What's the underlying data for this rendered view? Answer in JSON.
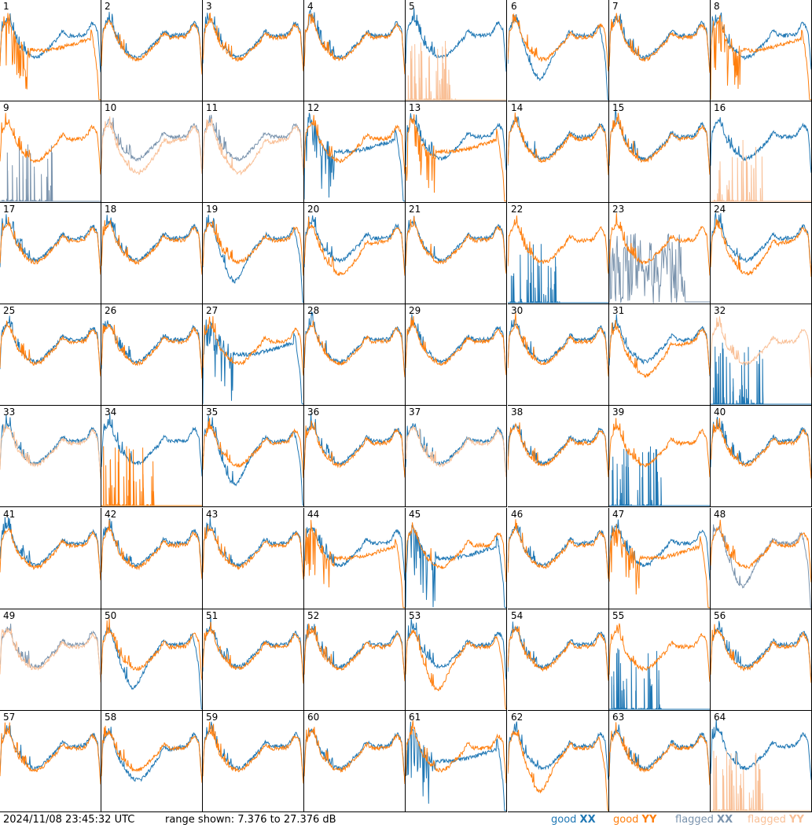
{
  "footer": {
    "timestamp": "2024/11/08 23:45:32 UTC",
    "range": "range shown: 7.376 to 27.376 dB"
  },
  "legend": [
    {
      "prefix": "good ",
      "pol": "XX",
      "color": "#1f77b4"
    },
    {
      "prefix": "good ",
      "pol": "YY",
      "color": "#ff7f0e"
    },
    {
      "prefix": "flagged ",
      "pol": "XX",
      "color": "#7a93ad"
    },
    {
      "prefix": "flagged ",
      "pol": "YY",
      "color": "#f9c097"
    }
  ],
  "colors": {
    "good_xx": "#1f77b4",
    "good_yy": "#ff7f0e",
    "flagged_xx": "#7a93ad",
    "flagged_yy": "#f9c097"
  },
  "chart_data": {
    "type": "line",
    "grid": "8x8 small multiples",
    "ylim_db": [
      7.376,
      27.376
    ],
    "panels": [
      {
        "label": "1",
        "xx": "norm",
        "yy": "drop",
        "xx_state": "good",
        "yy_state": "good"
      },
      {
        "label": "2",
        "xx": "norm",
        "yy": "norm",
        "xx_state": "good",
        "yy_state": "good"
      },
      {
        "label": "3",
        "xx": "norm",
        "yy": "norm",
        "xx_state": "good",
        "yy_state": "good"
      },
      {
        "label": "4",
        "xx": "norm",
        "yy": "norm",
        "xx_state": "good",
        "yy_state": "good"
      },
      {
        "label": "5",
        "xx": "norm",
        "yy": "spike",
        "xx_state": "good",
        "yy_state": "flagged"
      },
      {
        "label": "6",
        "xx": "sag",
        "yy": "norm",
        "xx_state": "good",
        "yy_state": "good"
      },
      {
        "label": "7",
        "xx": "norm",
        "yy": "norm",
        "xx_state": "good",
        "yy_state": "good"
      },
      {
        "label": "8",
        "xx": "norm",
        "yy": "drop",
        "xx_state": "good",
        "yy_state": "good"
      },
      {
        "label": "9",
        "xx": "spike",
        "yy": "norm",
        "xx_state": "flagged",
        "yy_state": "good"
      },
      {
        "label": "10",
        "xx": "norm",
        "yy": "low",
        "xx_state": "flagged",
        "yy_state": "flagged"
      },
      {
        "label": "11",
        "xx": "norm",
        "yy": "low",
        "xx_state": "flagged",
        "yy_state": "flagged"
      },
      {
        "label": "12",
        "xx": "drop",
        "yy": "norm",
        "xx_state": "good",
        "yy_state": "good"
      },
      {
        "label": "13",
        "xx": "norm",
        "yy": "drop",
        "xx_state": "good",
        "yy_state": "good"
      },
      {
        "label": "14",
        "xx": "norm",
        "yy": "norm",
        "xx_state": "good",
        "yy_state": "good"
      },
      {
        "label": "15",
        "xx": "norm",
        "yy": "norm",
        "xx_state": "good",
        "yy_state": "good"
      },
      {
        "label": "16",
        "xx": "norm",
        "yy": "spike",
        "xx_state": "good",
        "yy_state": "flagged"
      },
      {
        "label": "17",
        "xx": "norm",
        "yy": "norm",
        "xx_state": "good",
        "yy_state": "good"
      },
      {
        "label": "18",
        "xx": "norm",
        "yy": "norm",
        "xx_state": "good",
        "yy_state": "good"
      },
      {
        "label": "19",
        "xx": "sag",
        "yy": "norm",
        "xx_state": "good",
        "yy_state": "good"
      },
      {
        "label": "20",
        "xx": "norm",
        "yy": "low",
        "xx_state": "good",
        "yy_state": "good"
      },
      {
        "label": "21",
        "xx": "norm",
        "yy": "norm",
        "xx_state": "good",
        "yy_state": "good"
      },
      {
        "label": "22",
        "xx": "spike",
        "yy": "norm",
        "xx_state": "good",
        "yy_state": "good"
      },
      {
        "label": "23",
        "xx": "noise",
        "yy": "norm",
        "xx_state": "flagged",
        "yy_state": "good"
      },
      {
        "label": "24",
        "xx": "norm",
        "yy": "low",
        "xx_state": "good",
        "yy_state": "good"
      },
      {
        "label": "25",
        "xx": "norm",
        "yy": "norm",
        "xx_state": "good",
        "yy_state": "good"
      },
      {
        "label": "26",
        "xx": "norm",
        "yy": "norm",
        "xx_state": "good",
        "yy_state": "good"
      },
      {
        "label": "27",
        "xx": "drop",
        "yy": "norm",
        "xx_state": "good",
        "yy_state": "good"
      },
      {
        "label": "28",
        "xx": "norm",
        "yy": "norm",
        "xx_state": "good",
        "yy_state": "good"
      },
      {
        "label": "29",
        "xx": "norm",
        "yy": "norm",
        "xx_state": "good",
        "yy_state": "good"
      },
      {
        "label": "30",
        "xx": "norm",
        "yy": "norm",
        "xx_state": "good",
        "yy_state": "good"
      },
      {
        "label": "31",
        "xx": "norm",
        "yy": "low",
        "xx_state": "good",
        "yy_state": "good"
      },
      {
        "label": "32",
        "xx": "spike",
        "yy": "norm",
        "xx_state": "good",
        "yy_state": "flagged"
      },
      {
        "label": "33",
        "xx": "norm",
        "yy": "norm",
        "xx_state": "good",
        "yy_state": "flagged"
      },
      {
        "label": "34",
        "xx": "norm",
        "yy": "spike",
        "xx_state": "good",
        "yy_state": "good"
      },
      {
        "label": "35",
        "xx": "sag",
        "yy": "norm",
        "xx_state": "good",
        "yy_state": "good"
      },
      {
        "label": "36",
        "xx": "norm",
        "yy": "norm",
        "xx_state": "good",
        "yy_state": "good"
      },
      {
        "label": "37",
        "xx": "norm",
        "yy": "norm",
        "xx_state": "good",
        "yy_state": "flagged"
      },
      {
        "label": "38",
        "xx": "norm",
        "yy": "norm",
        "xx_state": "good",
        "yy_state": "good"
      },
      {
        "label": "39",
        "xx": "spike",
        "yy": "norm",
        "xx_state": "good",
        "yy_state": "good"
      },
      {
        "label": "40",
        "xx": "norm",
        "yy": "norm",
        "xx_state": "good",
        "yy_state": "good"
      },
      {
        "label": "41",
        "xx": "norm",
        "yy": "norm",
        "xx_state": "good",
        "yy_state": "good"
      },
      {
        "label": "42",
        "xx": "norm",
        "yy": "norm",
        "xx_state": "good",
        "yy_state": "good"
      },
      {
        "label": "43",
        "xx": "norm",
        "yy": "norm",
        "xx_state": "good",
        "yy_state": "good"
      },
      {
        "label": "44",
        "xx": "norm",
        "yy": "drop",
        "xx_state": "good",
        "yy_state": "good"
      },
      {
        "label": "45",
        "xx": "drop",
        "yy": "norm",
        "xx_state": "good",
        "yy_state": "good"
      },
      {
        "label": "46",
        "xx": "norm",
        "yy": "norm",
        "xx_state": "good",
        "yy_state": "good"
      },
      {
        "label": "47",
        "xx": "norm",
        "yy": "drop",
        "xx_state": "good",
        "yy_state": "good"
      },
      {
        "label": "48",
        "xx": "sag",
        "yy": "norm",
        "xx_state": "flagged",
        "yy_state": "good"
      },
      {
        "label": "49",
        "xx": "norm",
        "yy": "norm",
        "xx_state": "flagged",
        "yy_state": "flagged"
      },
      {
        "label": "50",
        "xx": "sag",
        "yy": "norm",
        "xx_state": "good",
        "yy_state": "good"
      },
      {
        "label": "51",
        "xx": "norm",
        "yy": "norm",
        "xx_state": "good",
        "yy_state": "good"
      },
      {
        "label": "52",
        "xx": "norm",
        "yy": "norm",
        "xx_state": "good",
        "yy_state": "good"
      },
      {
        "label": "53",
        "xx": "norm",
        "yy": "sag",
        "xx_state": "good",
        "yy_state": "good"
      },
      {
        "label": "54",
        "xx": "norm",
        "yy": "norm",
        "xx_state": "good",
        "yy_state": "good"
      },
      {
        "label": "55",
        "xx": "spike",
        "yy": "norm",
        "xx_state": "good",
        "yy_state": "good"
      },
      {
        "label": "56",
        "xx": "norm",
        "yy": "norm",
        "xx_state": "good",
        "yy_state": "good"
      },
      {
        "label": "57",
        "xx": "norm",
        "yy": "norm",
        "xx_state": "good",
        "yy_state": "good"
      },
      {
        "label": "58",
        "xx": "low",
        "yy": "norm",
        "xx_state": "good",
        "yy_state": "good"
      },
      {
        "label": "59",
        "xx": "norm",
        "yy": "norm",
        "xx_state": "good",
        "yy_state": "good"
      },
      {
        "label": "60",
        "xx": "norm",
        "yy": "norm",
        "xx_state": "good",
        "yy_state": "good"
      },
      {
        "label": "61",
        "xx": "drop",
        "yy": "norm",
        "xx_state": "good",
        "yy_state": "good"
      },
      {
        "label": "62",
        "xx": "norm",
        "yy": "sag",
        "xx_state": "good",
        "yy_state": "good"
      },
      {
        "label": "63",
        "xx": "norm",
        "yy": "norm",
        "xx_state": "good",
        "yy_state": "good"
      },
      {
        "label": "64",
        "xx": "norm",
        "yy": "spike",
        "xx_state": "good",
        "yy_state": "flagged"
      }
    ]
  }
}
